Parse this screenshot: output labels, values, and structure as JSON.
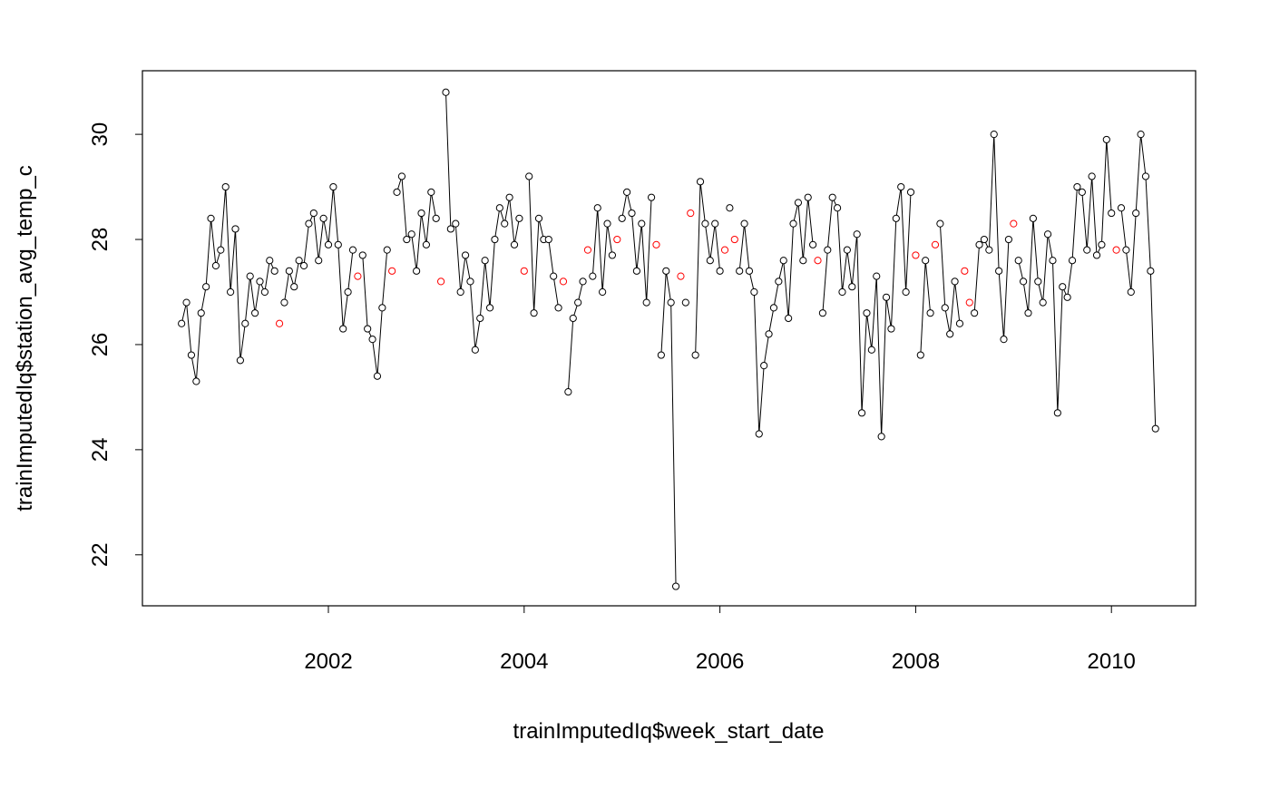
{
  "chart_data": {
    "type": "line",
    "xlabel": "trainImputedIq$week_start_date",
    "ylabel": "trainImputedIq$station_avg_temp_c",
    "xlim": [
      2000.1,
      2010.86
    ],
    "ylim": [
      21.03,
      31.21
    ],
    "xticks": [
      2002,
      2004,
      2006,
      2008,
      2010
    ],
    "yticks": [
      22,
      24,
      26,
      28,
      30
    ],
    "grid": false,
    "x": [
      2000.5,
      2000.55,
      2000.6,
      2000.65,
      2000.7,
      2000.75,
      2000.8,
      2000.85,
      2000.9,
      2000.95,
      2001,
      2001.05,
      2001.1,
      2001.15,
      2001.2,
      2001.25,
      2001.3,
      2001.35,
      2001.4,
      2001.45,
      2001.5,
      2001.55,
      2001.6,
      2001.65,
      2001.7,
      2001.75,
      2001.8,
      2001.85,
      2001.9,
      2001.95,
      2002,
      2002.05,
      2002.1,
      2002.15,
      2002.2,
      2002.25,
      2002.3,
      2002.35,
      2002.4,
      2002.45,
      2002.5,
      2002.55,
      2002.6,
      2002.65,
      2002.7,
      2002.75,
      2002.8,
      2002.85,
      2002.9,
      2002.95,
      2003,
      2003.05,
      2003.1,
      2003.15,
      2003.2,
      2003.25,
      2003.3,
      2003.35,
      2003.4,
      2003.45,
      2003.5,
      2003.55,
      2003.6,
      2003.65,
      2003.7,
      2003.75,
      2003.8,
      2003.85,
      2003.9,
      2003.95,
      2004,
      2004.05,
      2004.1,
      2004.15,
      2004.2,
      2004.25,
      2004.3,
      2004.35,
      2004.4,
      2004.45,
      2004.5,
      2004.55,
      2004.6,
      2004.65,
      2004.7,
      2004.75,
      2004.8,
      2004.85,
      2004.9,
      2004.95,
      2005,
      2005.05,
      2005.1,
      2005.15,
      2005.2,
      2005.25,
      2005.3,
      2005.35,
      2005.4,
      2005.45,
      2005.5,
      2005.55,
      2005.6,
      2005.65,
      2005.7,
      2005.75,
      2005.8,
      2005.85,
      2005.9,
      2005.95,
      2006,
      2006.05,
      2006.1,
      2006.15,
      2006.2,
      2006.25,
      2006.3,
      2006.35,
      2006.4,
      2006.45,
      2006.5,
      2006.55,
      2006.6,
      2006.65,
      2006.7,
      2006.75,
      2006.8,
      2006.85,
      2006.9,
      2006.95,
      2007,
      2007.05,
      2007.1,
      2007.15,
      2007.2,
      2007.25,
      2007.3,
      2007.35,
      2007.4,
      2007.45,
      2007.5,
      2007.55,
      2007.6,
      2007.65,
      2007.7,
      2007.75,
      2007.8,
      2007.85,
      2007.9,
      2007.95,
      2008,
      2008.05,
      2008.1,
      2008.15,
      2008.2,
      2008.25,
      2008.3,
      2008.35,
      2008.4,
      2008.45,
      2008.5,
      2008.55,
      2008.6,
      2008.65,
      2008.7,
      2008.75,
      2008.8,
      2008.85,
      2008.9,
      2008.95,
      2009,
      2009.05,
      2009.1,
      2009.15,
      2009.2,
      2009.25,
      2009.3,
      2009.35,
      2009.4,
      2009.45,
      2009.5,
      2009.55,
      2009.6,
      2009.65,
      2009.7,
      2009.75,
      2009.8,
      2009.85,
      2009.9,
      2009.95,
      2010,
      2010.05,
      2010.1,
      2010.15,
      2010.2,
      2010.25,
      2010.3,
      2010.35,
      2010.4,
      2010.45
    ],
    "series": [
      {
        "color": "#000000",
        "line": true,
        "values": [
          26.4,
          26.8,
          25.8,
          25.3,
          26.6,
          27.1,
          28.4,
          27.5,
          27.8,
          29.0,
          27.0,
          28.2,
          25.7,
          26.4,
          27.3,
          26.6,
          27.2,
          27.0,
          27.6,
          27.4,
          null,
          26.8,
          27.4,
          27.1,
          27.6,
          27.5,
          28.3,
          28.5,
          27.6,
          28.4,
          27.9,
          29.0,
          27.9,
          26.3,
          27.0,
          27.8,
          null,
          27.7,
          26.3,
          26.1,
          25.4,
          26.7,
          27.8,
          null,
          28.9,
          29.2,
          28.0,
          28.1,
          27.4,
          28.5,
          27.9,
          28.9,
          28.4,
          null,
          30.8,
          28.2,
          28.3,
          27.0,
          27.7,
          27.2,
          25.9,
          26.5,
          27.6,
          26.7,
          28.0,
          28.6,
          28.3,
          28.8,
          27.9,
          28.4,
          null,
          29.2,
          26.6,
          28.4,
          28.0,
          28.0,
          27.3,
          26.7,
          null,
          25.1,
          26.5,
          26.8,
          27.2,
          null,
          27.3,
          28.6,
          27.0,
          28.3,
          27.7,
          null,
          28.4,
          28.9,
          28.5,
          27.4,
          28.3,
          26.8,
          28.8,
          null,
          25.8,
          27.4,
          26.8,
          21.4,
          null,
          26.8,
          null,
          25.8,
          29.1,
          28.3,
          27.6,
          28.3,
          27.4,
          null,
          28.6,
          null,
          27.4,
          28.3,
          27.4,
          27.0,
          24.3,
          25.6,
          26.2,
          26.7,
          27.2,
          27.6,
          26.5,
          28.3,
          28.7,
          27.6,
          28.8,
          27.9,
          null,
          26.6,
          27.8,
          28.8,
          28.6,
          27.0,
          27.8,
          27.1,
          28.1,
          24.7,
          26.6,
          25.9,
          27.3,
          24.25,
          26.9,
          26.3,
          28.4,
          29.0,
          27.0,
          28.9,
          null,
          25.8,
          27.6,
          26.6,
          null,
          28.3,
          26.7,
          26.2,
          27.2,
          26.4,
          null,
          null,
          26.6,
          27.9,
          28.0,
          27.8,
          30.0,
          27.4,
          26.1,
          28.0,
          null,
          27.6,
          27.2,
          26.6,
          28.4,
          27.2,
          26.8,
          28.1,
          27.6,
          24.7,
          27.1,
          26.9,
          27.6,
          29.0,
          28.9,
          27.8,
          29.2,
          27.7,
          27.9,
          29.9,
          28.5,
          null,
          28.6,
          27.8,
          27.0,
          28.5,
          30.0,
          29.2,
          27.4,
          24.4
        ]
      },
      {
        "color": "#ff0000",
        "line": false,
        "x": [
          2001.5,
          2002.3,
          2002.65,
          2003.15,
          2004,
          2004.4,
          2004.65,
          2004.95,
          2005.35,
          2005.6,
          2005.7,
          2006.05,
          2006.15,
          2007,
          2008,
          2008.2,
          2008.5,
          2008.55,
          2009,
          2010.05
        ],
        "values": [
          26.4,
          27.3,
          27.4,
          27.2,
          27.4,
          27.2,
          27.8,
          28.0,
          27.9,
          27.3,
          28.5,
          27.8,
          28.0,
          27.6,
          27.7,
          27.9,
          27.4,
          26.8,
          28.3,
          27.8
        ]
      }
    ]
  }
}
